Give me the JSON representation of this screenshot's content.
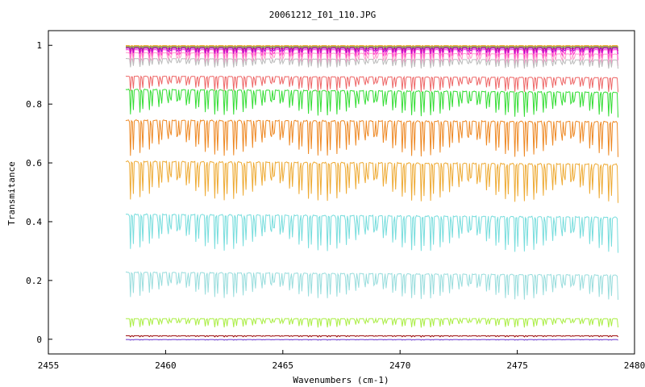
{
  "chart_data": {
    "type": "line",
    "title": "20061212_I01_110.JPG",
    "xlabel": "Wavenumbers (cm-1)",
    "ylabel": "Transmitance",
    "xlim": [
      2455,
      2480
    ],
    "ylim": [
      -0.05,
      1.05
    ],
    "x_ticks": [
      2455,
      2460,
      2465,
      2470,
      2475,
      2480
    ],
    "x_tick_labels": [
      "2455",
      "2460",
      "2465",
      "2470",
      "2475",
      "2480"
    ],
    "y_ticks": [
      0,
      0.2,
      0.4,
      0.6,
      0.8,
      1
    ],
    "y_tick_labels": [
      "0",
      "0.2",
      "0.4",
      "0.6",
      "0.8",
      "1"
    ],
    "x_range": [
      2458.3,
      2479.3
    ],
    "grid": false,
    "legend": "none",
    "series": [
      {
        "color": "#ff9900",
        "baseline": 0.999,
        "depth": 0.004,
        "tilt": 0.0
      },
      {
        "color": "#cc9933",
        "baseline": 0.997,
        "depth": 0.006,
        "tilt": 0.0
      },
      {
        "color": "#999999",
        "baseline": 0.996,
        "depth": 0.005,
        "tilt": 0.0
      },
      {
        "color": "#66cc66",
        "baseline": 0.995,
        "depth": 0.006,
        "tilt": 0.0
      },
      {
        "color": "#cc3366",
        "baseline": 0.993,
        "depth": 0.012,
        "tilt": 0.0
      },
      {
        "color": "#9900cc",
        "baseline": 0.99,
        "depth": 0.02,
        "tilt": 0.0
      },
      {
        "color": "#ff33cc",
        "baseline": 0.985,
        "depth": 0.035,
        "tilt": 0.0
      },
      {
        "color": "#ff99cc",
        "baseline": 0.975,
        "depth": 0.04,
        "tilt": -0.005
      },
      {
        "color": "#bbbbbb",
        "baseline": 0.955,
        "depth": 0.03,
        "tilt": -0.005
      },
      {
        "color": "#ee6666",
        "baseline": 0.895,
        "depth": 0.05,
        "tilt": -0.005
      },
      {
        "color": "#33dd33",
        "baseline": 0.85,
        "depth": 0.085,
        "tilt": -0.01
      },
      {
        "color": "#ee8822",
        "baseline": 0.745,
        "depth": 0.12,
        "tilt": -0.005
      },
      {
        "color": "#eeaa33",
        "baseline": 0.605,
        "depth": 0.13,
        "tilt": -0.01
      },
      {
        "color": "#77dddd",
        "baseline": 0.425,
        "depth": 0.12,
        "tilt": -0.01
      },
      {
        "color": "#99dddd",
        "baseline": 0.228,
        "depth": 0.085,
        "tilt": -0.01
      },
      {
        "color": "#aaee44",
        "baseline": 0.07,
        "depth": 0.03,
        "tilt": 0.0
      },
      {
        "color": "#990000",
        "baseline": 0.012,
        "depth": 0.004,
        "tilt": 0.0
      },
      {
        "color": "#6633cc",
        "baseline": -0.001,
        "depth": 0.002,
        "tilt": 0.0
      }
    ]
  }
}
